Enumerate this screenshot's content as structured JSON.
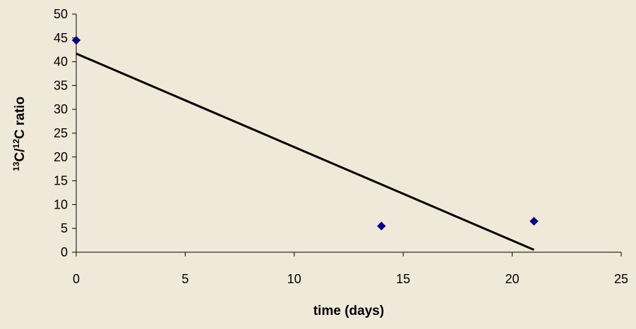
{
  "chart_data": {
    "type": "scatter",
    "title": "",
    "xlabel": "time (days)",
    "ylabel": {
      "sup1": "13",
      "main1": "C/",
      "sup2": "12",
      "main2": "C ratio"
    },
    "xlim": [
      0,
      25
    ],
    "ylim": [
      0,
      50
    ],
    "xticks": [
      0,
      5,
      10,
      15,
      20,
      25
    ],
    "yticks": [
      0,
      5,
      10,
      15,
      20,
      25,
      30,
      35,
      40,
      45,
      50
    ],
    "grid": false,
    "legend": "none",
    "series": [
      {
        "marker": "diamond",
        "color": "#000080",
        "points": [
          {
            "x": 0,
            "y": 44.5
          },
          {
            "x": 14,
            "y": 5.5
          },
          {
            "x": 21,
            "y": 6.5
          }
        ]
      }
    ],
    "trendline": {
      "kind": "linear",
      "color": "#000000",
      "from": {
        "x": 0,
        "y": 41.7
      },
      "to": {
        "x": 21,
        "y": 0.5
      }
    },
    "colors": {
      "background": "#F0E8D8",
      "axis": "#000000",
      "marker": "#000080"
    }
  }
}
